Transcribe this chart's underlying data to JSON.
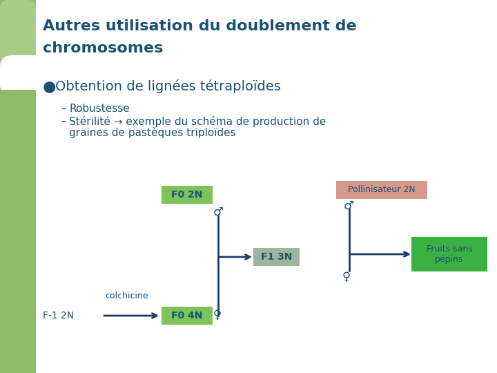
{
  "title_line1": "Autres utilisation du doublement de",
  "title_line2": "chromosomes",
  "title_color": "#1a5276",
  "title_fontsize": 16,
  "bullet_text": "Obtention de lignées tétraploïdes",
  "bullet_color": "#1a5276",
  "bullet_fontsize": 14,
  "dash1_text": "Robustesse",
  "dash2_text": "Stérilité → exemple du schéma de production de",
  "dash2b_text": "graines de pastèques triploïdes",
  "dash_color": "#1a5276",
  "dash_fontsize": 11,
  "bg_color": "#ffffff",
  "left_bar_color": "#8fbc6a",
  "box_f0_2n_color": "#7dc35a",
  "box_f0_4n_color": "#7dc35a",
  "box_f1_3n_color": "#9db59a",
  "box_pollin_color": "#d4998a",
  "box_fruits_color": "#3cb043",
  "box_text_color": "#1a5276",
  "arrow_color": "#1a3a6b",
  "diagram_text_color": "#1a5276"
}
